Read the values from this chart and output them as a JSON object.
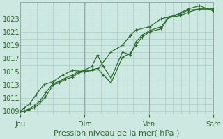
{
  "background_color": "#cce8e0",
  "plot_bg_color": "#cce8e0",
  "grid_color": "#aacccc",
  "vline_color": "#99aaaa",
  "line_color": "#2d6b2d",
  "marker_color": "#2d6b2d",
  "xlabel": "Pression niveau de la mer( hPa )",
  "ylim": [
    1008.5,
    1025.5
  ],
  "yticks": [
    1009,
    1011,
    1013,
    1015,
    1017,
    1019,
    1021,
    1023
  ],
  "xtick_labels": [
    "Jeu",
    "Dim",
    "Ven",
    "Sam"
  ],
  "xtick_positions": [
    0.0,
    0.333,
    0.667,
    1.0
  ],
  "vline_positions": [
    0.0,
    0.333,
    0.667,
    1.0
  ],
  "series1_x": [
    0.0,
    0.02,
    0.04,
    0.07,
    0.1,
    0.13,
    0.17,
    0.2,
    0.23,
    0.27,
    0.3,
    0.33,
    0.37,
    0.4,
    0.43,
    0.47,
    0.53,
    0.57,
    0.6,
    0.63,
    0.67,
    0.73,
    0.77,
    0.83,
    0.87,
    0.93,
    1.0
  ],
  "series1_y": [
    1009.0,
    1009.0,
    1009.2,
    1009.5,
    1010.2,
    1011.2,
    1013.0,
    1013.3,
    1013.8,
    1014.2,
    1014.8,
    1015.0,
    1015.3,
    1015.5,
    1014.5,
    1013.3,
    1017.2,
    1017.8,
    1019.0,
    1020.2,
    1021.0,
    1021.5,
    1023.2,
    1023.5,
    1024.0,
    1024.5,
    1024.5
  ],
  "series2_x": [
    0.0,
    0.02,
    0.04,
    0.07,
    0.1,
    0.13,
    0.17,
    0.2,
    0.23,
    0.27,
    0.3,
    0.33,
    0.37,
    0.4,
    0.43,
    0.47,
    0.53,
    0.57,
    0.6,
    0.63,
    0.67,
    0.73,
    0.77,
    0.83,
    0.87,
    0.93,
    1.0
  ],
  "series2_y": [
    1009.0,
    1009.0,
    1009.3,
    1009.8,
    1010.5,
    1011.8,
    1013.2,
    1013.5,
    1014.0,
    1014.5,
    1015.0,
    1015.2,
    1015.8,
    1017.5,
    1015.8,
    1014.0,
    1018.0,
    1017.5,
    1019.5,
    1020.5,
    1021.2,
    1021.8,
    1023.3,
    1023.8,
    1024.3,
    1024.5,
    1024.5
  ],
  "series3_x": [
    0.0,
    0.02,
    0.05,
    0.08,
    0.12,
    0.17,
    0.22,
    0.27,
    0.33,
    0.4,
    0.47,
    0.53,
    0.57,
    0.6,
    0.67,
    0.73,
    0.8,
    0.87,
    0.93,
    1.0
  ],
  "series3_y": [
    1009.0,
    1009.5,
    1010.2,
    1011.5,
    1013.0,
    1013.5,
    1014.5,
    1015.2,
    1015.0,
    1015.3,
    1018.0,
    1019.0,
    1020.5,
    1021.3,
    1021.8,
    1023.0,
    1023.5,
    1024.5,
    1025.0,
    1024.2
  ],
  "xlabel_fontsize": 8,
  "tick_fontsize": 7
}
